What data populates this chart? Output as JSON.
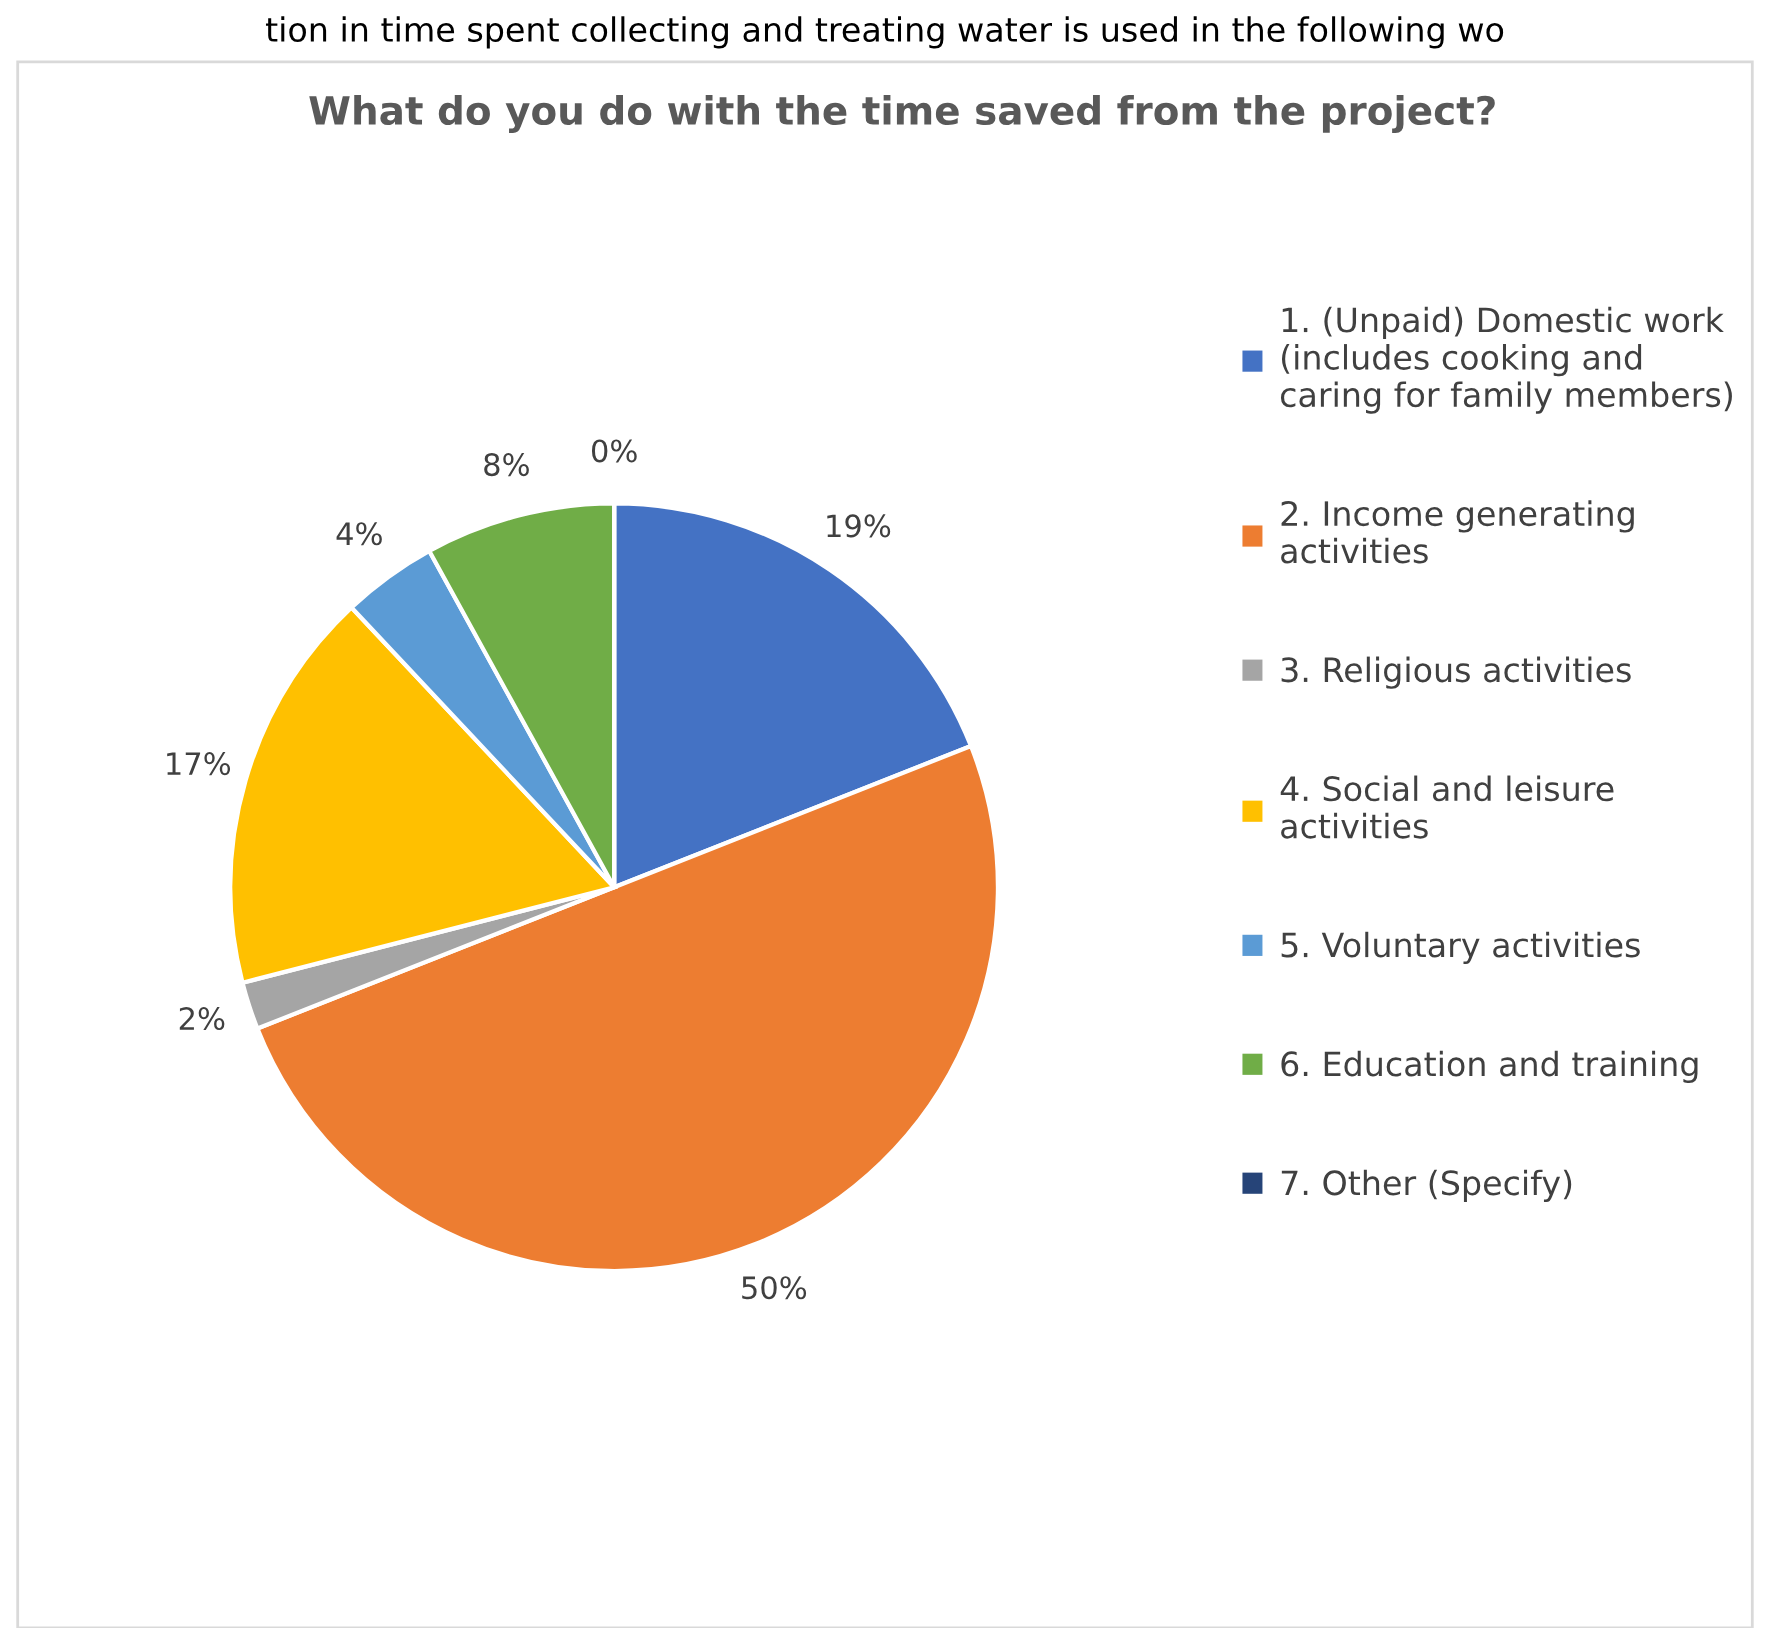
{
  "chart_data": {
    "type": "pie",
    "title": "What do you do with the time saved from the project?",
    "annotations": [
      "tion in time spent collecting and treating water is used in the following wo"
    ],
    "categories": [
      "1. (Unpaid) Domestic work (includes cooking and caring for family members)",
      "2. Income generating activities",
      "3. Religious activities",
      "4. Social and leisure activities",
      "5. Voluntary activities",
      "6. Education and training",
      "7. Other (Specify)"
    ],
    "values": [
      19,
      50,
      2,
      17,
      4,
      8,
      0
    ],
    "value_labels": [
      "19%",
      "50%",
      "2%",
      "17%",
      "4%",
      "8%",
      "0%"
    ],
    "colors": [
      "#4472c4",
      "#ed7d31",
      "#a5a5a5",
      "#ffc000",
      "#5b9bd5",
      "#70ad47",
      "#264478"
    ],
    "legend": "right"
  }
}
